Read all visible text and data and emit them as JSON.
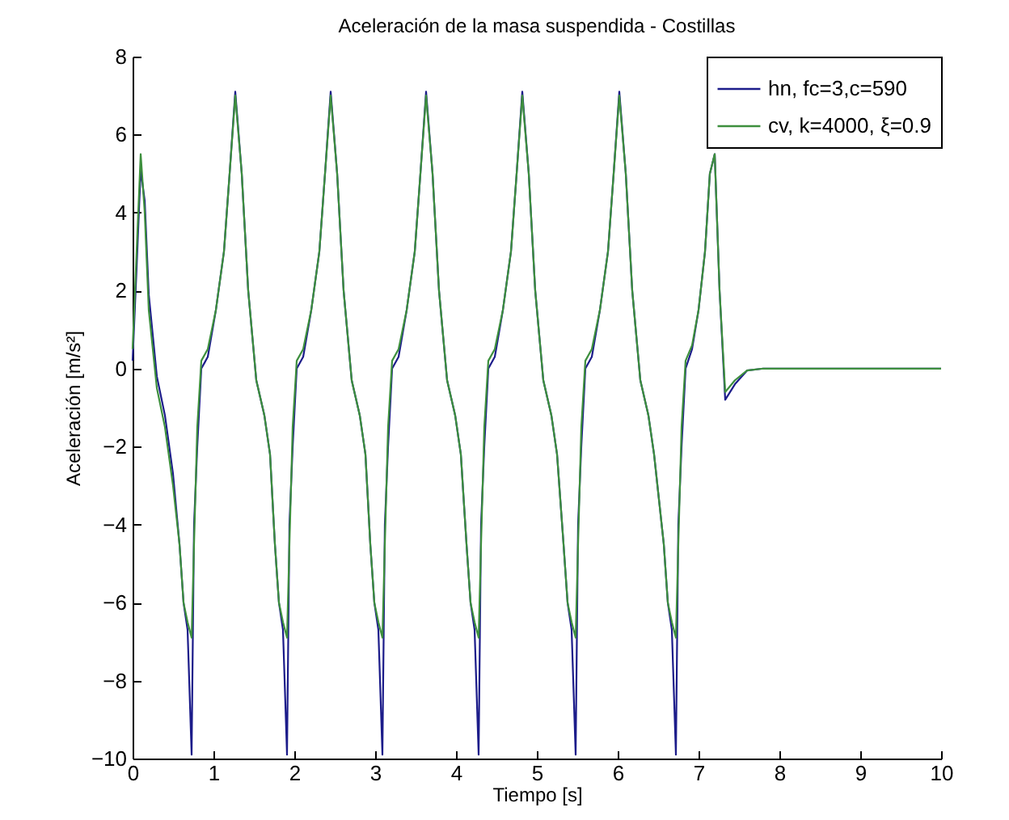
{
  "chart_data": {
    "type": "line",
    "title": "Aceleración de la masa suspendida - Costillas",
    "xlabel": "Tiempo [s]",
    "ylabel": "Aceleración [m/s²]",
    "x": [
      0,
      0.05,
      0.1,
      0.15,
      0.2,
      0.3,
      0.4,
      0.5,
      0.58,
      0.63,
      0.68,
      0.73,
      0.76,
      0.8,
      0.85,
      0.93,
      1.03,
      1.13,
      1.2,
      1.27,
      1.35,
      1.43,
      1.53,
      1.63,
      1.7,
      1.76,
      1.81,
      1.86,
      1.91,
      1.94,
      1.98,
      2.03,
      2.11,
      2.21,
      2.31,
      2.38,
      2.45,
      2.53,
      2.61,
      2.71,
      2.81,
      2.88,
      2.94,
      2.99,
      3.04,
      3.09,
      3.12,
      3.16,
      3.21,
      3.29,
      3.39,
      3.49,
      3.56,
      3.63,
      3.71,
      3.79,
      3.89,
      3.99,
      4.06,
      4.13,
      4.18,
      4.23,
      4.28,
      4.31,
      4.35,
      4.4,
      4.48,
      4.58,
      4.68,
      4.75,
      4.82,
      4.9,
      4.98,
      5.08,
      5.18,
      5.25,
      5.33,
      5.38,
      5.43,
      5.48,
      5.51,
      5.55,
      5.6,
      5.68,
      5.78,
      5.88,
      5.95,
      6.02,
      6.1,
      6.18,
      6.28,
      6.38,
      6.45,
      6.57,
      6.62,
      6.67,
      6.72,
      6.75,
      6.79,
      6.84,
      6.92,
      7.0,
      7.08,
      7.14,
      7.2,
      7.26,
      7.33,
      7.45,
      7.6,
      7.8,
      10
    ],
    "series": [
      {
        "name": "hn, fc=3,c=590",
        "color": "#1c1c8a",
        "values": [
          0.2,
          2.6,
          5.1,
          4.3,
          1.9,
          -0.2,
          -1.2,
          -2.7,
          -4.5,
          -6.0,
          -6.7,
          -9.9,
          -4.0,
          -2.0,
          0.0,
          0.3,
          1.5,
          3.0,
          5.0,
          7.1,
          5.0,
          2.0,
          -0.3,
          -1.2,
          -2.2,
          -4.5,
          -6.0,
          -6.7,
          -9.9,
          -4.0,
          -2.0,
          0.0,
          0.3,
          1.5,
          3.0,
          5.0,
          7.1,
          5.0,
          2.0,
          -0.3,
          -1.2,
          -2.2,
          -4.5,
          -6.0,
          -6.7,
          -9.9,
          -4.0,
          -2.0,
          0.0,
          0.3,
          1.5,
          3.0,
          5.0,
          7.1,
          5.0,
          2.0,
          -0.3,
          -1.2,
          -2.2,
          -4.5,
          -6.0,
          -6.7,
          -9.9,
          -4.0,
          -2.0,
          0.0,
          0.3,
          1.5,
          3.0,
          5.0,
          7.1,
          5.0,
          2.0,
          -0.3,
          -1.2,
          -2.2,
          -4.5,
          -6.0,
          -6.7,
          -9.9,
          -4.0,
          -2.0,
          0.0,
          0.3,
          1.5,
          3.0,
          5.0,
          7.1,
          5.0,
          2.0,
          -0.3,
          -1.2,
          -2.2,
          -4.5,
          -6.0,
          -6.7,
          -9.9,
          -4.0,
          -2.0,
          0.0,
          0.5,
          1.5,
          3.0,
          5.0,
          5.5,
          2.0,
          -0.8,
          -0.4,
          -0.05,
          0.0,
          0.0
        ]
      },
      {
        "name": "cv, k=4000, ξ=0.9",
        "color": "#3d8f3d",
        "values": [
          0.5,
          3.0,
          5.5,
          4.0,
          1.5,
          -0.5,
          -1.5,
          -3.0,
          -4.5,
          -6.0,
          -6.5,
          -6.9,
          -4.5,
          -1.5,
          0.2,
          0.5,
          1.5,
          3.0,
          5.0,
          7.0,
          5.0,
          2.0,
          -0.3,
          -1.2,
          -2.2,
          -4.5,
          -6.0,
          -6.5,
          -6.9,
          -4.5,
          -1.5,
          0.2,
          0.5,
          1.5,
          3.0,
          5.0,
          7.0,
          5.0,
          2.0,
          -0.3,
          -1.2,
          -2.2,
          -4.5,
          -6.0,
          -6.5,
          -6.9,
          -4.5,
          -1.5,
          0.2,
          0.5,
          1.5,
          3.0,
          5.0,
          7.0,
          5.0,
          2.0,
          -0.3,
          -1.2,
          -2.2,
          -4.5,
          -6.0,
          -6.5,
          -6.9,
          -4.5,
          -1.5,
          0.2,
          0.5,
          1.5,
          3.0,
          5.0,
          7.0,
          5.0,
          2.0,
          -0.3,
          -1.2,
          -2.2,
          -4.5,
          -6.0,
          -6.5,
          -6.9,
          -4.5,
          -1.5,
          0.2,
          0.5,
          1.5,
          3.0,
          5.0,
          7.0,
          5.0,
          2.0,
          -0.3,
          -1.2,
          -2.2,
          -4.5,
          -6.0,
          -6.5,
          -6.9,
          -4.5,
          -1.5,
          0.2,
          0.6,
          1.5,
          3.0,
          5.0,
          5.5,
          2.0,
          -0.6,
          -0.3,
          -0.05,
          0.0,
          0.0
        ]
      }
    ],
    "xlim": [
      0,
      10
    ],
    "xticks": [
      0,
      1,
      2,
      3,
      4,
      5,
      6,
      7,
      8,
      9,
      10
    ],
    "ylim": [
      -10,
      8
    ],
    "yticks": [
      -10,
      -8,
      -6,
      -4,
      -2,
      0,
      2,
      4,
      6,
      8
    ],
    "grid": false,
    "legend": "top right",
    "marker": "none",
    "line_style": "solid"
  }
}
